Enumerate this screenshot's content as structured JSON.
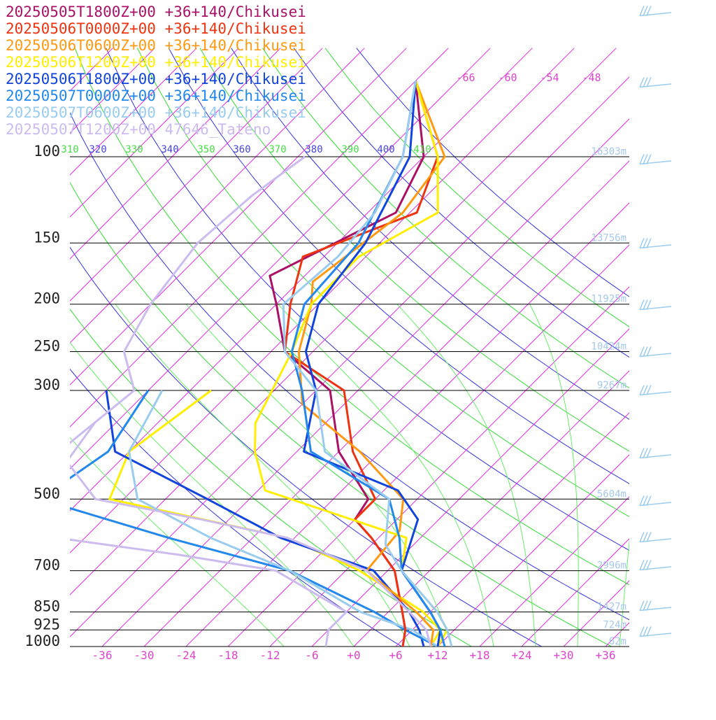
{
  "chart_data": {
    "type": "line",
    "title": "",
    "xlabel": "",
    "ylabel": "",
    "pressure_levels": [
      100,
      150,
      200,
      250,
      300,
      500,
      700,
      850,
      925,
      1000
    ],
    "temperature_ticks": [
      "-36",
      "-30",
      "-24",
      "-18",
      "-12",
      "-6",
      "+0",
      "+6",
      "+12",
      "+18",
      "+24",
      "+30",
      "+36"
    ],
    "theta_labels": [
      "310",
      "320",
      "330",
      "340",
      "350",
      "360",
      "370",
      "380",
      "390",
      "400",
      "410"
    ],
    "mixing_ratio_labels": [
      "-66",
      "-60",
      "-54",
      "-48"
    ],
    "heights": [
      {
        "p": 100,
        "label": "16303m"
      },
      {
        "p": 150,
        "label": "13756m"
      },
      {
        "p": 200,
        "label": "11925m"
      },
      {
        "p": 250,
        "label": "10424m"
      },
      {
        "p": 300,
        "label": "9267m"
      },
      {
        "p": 500,
        "label": "5604m"
      },
      {
        "p": 700,
        "label": "2996m"
      },
      {
        "p": 850,
        "label": "1427m"
      },
      {
        "p": 925,
        "label": "724m"
      },
      {
        "p": 1000,
        "label": "62m"
      }
    ],
    "series": [
      {
        "name": "20250505T1800Z+00 +36+140/Chikusei",
        "color": "#aa1166",
        "points": [
          [
            -72,
            70
          ],
          [
            -60,
            100
          ],
          [
            -56,
            130
          ],
          [
            -65,
            175
          ],
          [
            -60,
            200
          ],
          [
            -52,
            250
          ],
          [
            -40,
            300
          ],
          [
            -30,
            400
          ],
          [
            -19,
            500
          ],
          [
            -18,
            550
          ],
          [
            -13,
            600
          ],
          [
            -5,
            700
          ],
          [
            2,
            850
          ],
          [
            5,
            925
          ],
          [
            7,
            1000
          ]
        ]
      },
      {
        "name": "20250506T0000Z+00 +36+140/Chikusei",
        "color": "#ee3311",
        "points": [
          [
            -72,
            70
          ],
          [
            -58,
            100
          ],
          [
            -53,
            130
          ],
          [
            -63,
            160
          ],
          [
            -58,
            200
          ],
          [
            -52,
            250
          ],
          [
            -38,
            300
          ],
          [
            -28,
            400
          ],
          [
            -18,
            500
          ],
          [
            -18,
            550
          ],
          [
            -13,
            600
          ],
          [
            -5,
            700
          ],
          [
            2,
            850
          ],
          [
            5,
            925
          ],
          [
            7,
            1000
          ]
        ]
      },
      {
        "name": "20250506T0600Z+00 +36+140/Chikusei",
        "color": "#ff9911",
        "points": [
          [
            -72,
            70
          ],
          [
            -57,
            100
          ],
          [
            -55,
            130
          ],
          [
            -58,
            180
          ],
          [
            -55,
            200
          ],
          [
            -50,
            250
          ],
          [
            -42,
            320
          ],
          [
            -27,
            400
          ],
          [
            -14,
            500
          ],
          [
            -10,
            580
          ],
          [
            -9,
            700
          ],
          [
            4,
            850
          ],
          [
            9,
            925
          ],
          [
            11,
            1000
          ]
        ]
      },
      {
        "name": "20250506T1200Z+00 +36+140/Chikusei",
        "color": "#ffee00",
        "points": [
          [
            -72,
            70
          ],
          [
            -58,
            100
          ],
          [
            -50,
            130
          ],
          [
            -55,
            160
          ],
          [
            -55,
            200
          ],
          [
            -51,
            250
          ],
          [
            -46,
            350
          ],
          [
            -42,
            400
          ],
          [
            -35,
            480
          ],
          [
            -8,
            600
          ],
          [
            -4,
            700
          ],
          [
            7,
            850
          ],
          [
            11,
            925
          ],
          [
            12,
            1000
          ]
        ]
      },
      {
        "name": "20250506T1800Z+00 +36+140/Chikusei",
        "color": "#1144dd",
        "points": [
          [
            -72,
            70
          ],
          [
            -62,
            100
          ],
          [
            -56,
            150
          ],
          [
            -54,
            200
          ],
          [
            -49,
            250
          ],
          [
            -42,
            300
          ],
          [
            -35,
            400
          ],
          [
            -16,
            480
          ],
          [
            -9,
            550
          ],
          [
            -4,
            700
          ],
          [
            6,
            850
          ],
          [
            10,
            925
          ],
          [
            12,
            1000
          ]
        ]
      },
      {
        "name": "20250507T0000Z+00 +36+140/Chikusei",
        "color": "#2288ee",
        "points": [
          [
            -72,
            70
          ],
          [
            -63,
            100
          ],
          [
            -57,
            150
          ],
          [
            -56,
            200
          ],
          [
            -51,
            250
          ],
          [
            -44,
            300
          ],
          [
            -34,
            400
          ],
          [
            -16,
            500
          ],
          [
            -9,
            600
          ],
          [
            -4,
            700
          ],
          [
            6,
            850
          ],
          [
            10,
            925
          ],
          [
            13,
            1000
          ]
        ]
      },
      {
        "name": "20250507T0600Z+00 +36+140/Chikusei",
        "color": "#99ccee",
        "points": [
          [
            -72,
            70
          ],
          [
            -63,
            100
          ],
          [
            -59,
            130
          ],
          [
            -58,
            160
          ],
          [
            -59,
            200
          ],
          [
            -52,
            250
          ],
          [
            -42,
            300
          ],
          [
            -32,
            400
          ],
          [
            -16,
            500
          ],
          [
            -10,
            620
          ],
          [
            -4,
            700
          ],
          [
            7,
            850
          ],
          [
            11,
            925
          ],
          [
            14,
            1000
          ]
        ]
      },
      {
        "name": "20250507T1200Z+00 47646_Tateno",
        "color": "#ccbbee",
        "points": [
          [
            -77,
            100
          ],
          [
            -79,
            120
          ],
          [
            -80,
            150
          ],
          [
            -78,
            200
          ],
          [
            -75,
            250
          ],
          [
            -68,
            300
          ],
          [
            -70,
            400
          ],
          [
            -58,
            500
          ],
          [
            -40,
            550
          ],
          [
            -25,
            600
          ],
          [
            -9,
            700
          ],
          [
            3,
            850
          ],
          [
            8,
            925
          ],
          [
            11,
            1000
          ]
        ]
      }
    ],
    "dewpoint_series": [
      {
        "name": "20250506T1200Z+00 +36+140/Chikusei",
        "color": "#ffee00",
        "points": [
          [
            -57,
            300
          ],
          [
            -60,
            400
          ],
          [
            -56,
            500
          ],
          [
            -25,
            600
          ],
          [
            -10,
            700
          ],
          [
            5,
            850
          ],
          [
            10,
            925
          ],
          [
            11,
            1000
          ]
        ]
      },
      {
        "name": "20250506T1800Z+00 +36+140/Chikusei",
        "color": "#1144dd",
        "points": [
          [
            -72,
            300
          ],
          [
            -62,
            400
          ],
          [
            -42,
            500
          ],
          [
            -26,
            600
          ],
          [
            -8,
            700
          ],
          [
            3,
            850
          ],
          [
            7,
            925
          ],
          [
            10,
            1000
          ]
        ]
      },
      {
        "name": "20250507T0000Z+00 +36+140/Chikusei",
        "color": "#2288ee",
        "points": [
          [
            -66,
            300
          ],
          [
            -63,
            400
          ],
          [
            -66,
            500
          ],
          [
            -42,
            600
          ],
          [
            -20,
            700
          ],
          [
            -2,
            850
          ],
          [
            5,
            925
          ],
          [
            12,
            1000
          ]
        ]
      },
      {
        "name": "20250507T0600Z+00 +36+140/Chikusei",
        "color": "#99ccee",
        "points": [
          [
            -64,
            300
          ],
          [
            -60,
            400
          ],
          [
            -52,
            500
          ],
          [
            -36,
            600
          ],
          [
            -20,
            700
          ],
          [
            -4,
            850
          ],
          [
            6,
            925
          ],
          [
            12,
            1000
          ]
        ]
      },
      {
        "name": "20250507T1200Z+00 47646_Tateno",
        "color": "#ccbbee",
        "points": [
          [
            -69,
            350
          ],
          [
            -66,
            500
          ],
          [
            -58,
            600
          ],
          [
            -38,
            650
          ],
          [
            -22,
            700
          ],
          [
            -6,
            850
          ],
          [
            -6,
            925
          ],
          [
            -4,
            1000
          ]
        ]
      }
    ],
    "legend": "top-left",
    "grid": true
  }
}
